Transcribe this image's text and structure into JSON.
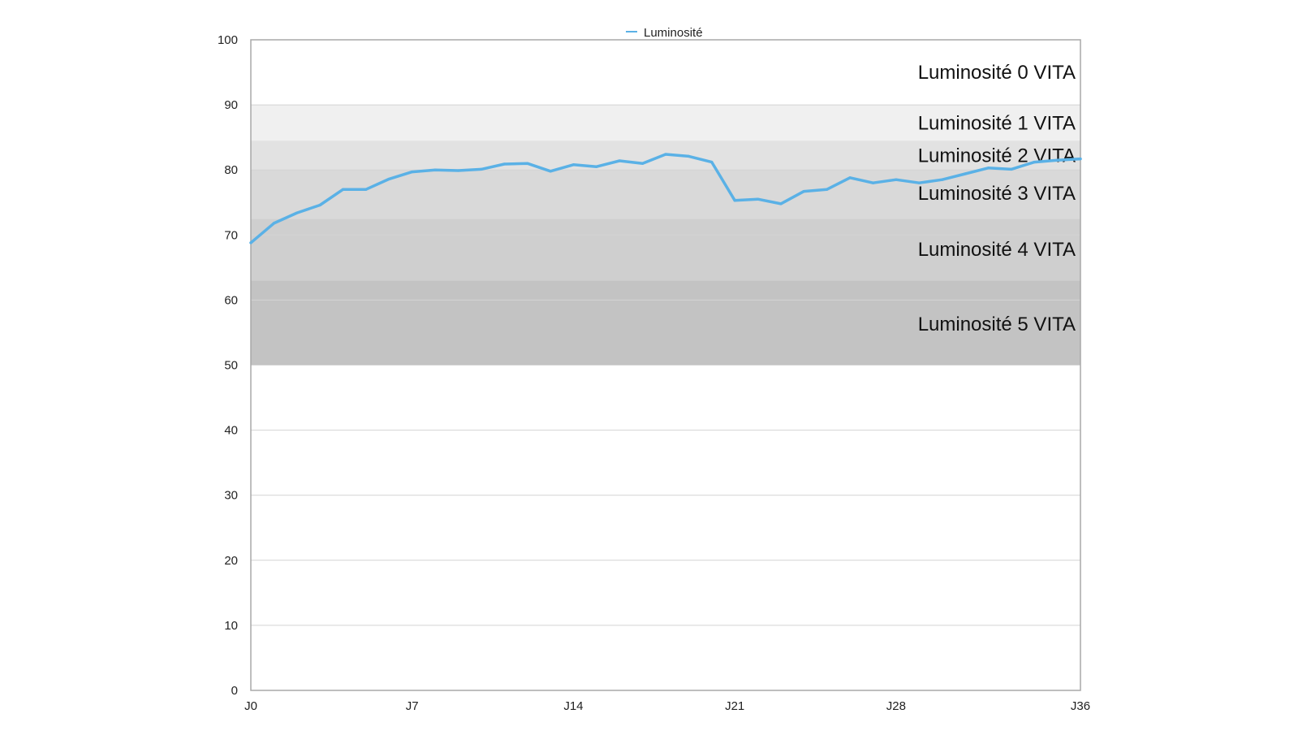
{
  "chart_data": {
    "type": "line",
    "legend": {
      "label": "Luminosité",
      "position": "top-center"
    },
    "ylim": [
      0,
      100
    ],
    "yticks": [
      "0",
      "10",
      "20",
      "30",
      "40",
      "50",
      "60",
      "70",
      "80",
      "90",
      "100"
    ],
    "xlim": [
      0,
      36
    ],
    "xticks": [
      {
        "x": 0,
        "label": "J0"
      },
      {
        "x": 7,
        "label": "J7"
      },
      {
        "x": 14,
        "label": "J14"
      },
      {
        "x": 21,
        "label": "J21"
      },
      {
        "x": 28,
        "label": "J28"
      },
      {
        "x": 36,
        "label": "J36"
      }
    ],
    "grid": true,
    "line_color": "#5ab1e6",
    "bands": [
      {
        "label": "Luminosité 0 VITA",
        "from": 90,
        "to": 100,
        "color": "#ffffff"
      },
      {
        "label": "Luminosité 1 VITA",
        "from": 84.5,
        "to": 90,
        "color": "#f0f0f0"
      },
      {
        "label": "Luminosité 2 VITA",
        "from": 80,
        "to": 84.5,
        "color": "#e2e2e2"
      },
      {
        "label": "Luminosité 3 VITA",
        "from": 72.5,
        "to": 80,
        "color": "#d9d9d9"
      },
      {
        "label": "Luminosité 4 VITA",
        "from": 63,
        "to": 72.5,
        "color": "#cfcfcf"
      },
      {
        "label": "Luminosité 5 VITA",
        "from": 50,
        "to": 63,
        "color": "#c3c3c3"
      }
    ],
    "band_label_values": [
      95,
      87.2,
      82.2,
      76.4,
      67.8,
      56.3
    ],
    "series": [
      {
        "name": "Luminosité",
        "x": [
          0,
          1,
          2,
          3,
          4,
          5,
          6,
          7,
          8,
          9,
          10,
          11,
          12,
          13,
          14,
          15,
          16,
          17,
          18,
          19,
          20,
          21,
          22,
          23,
          24,
          25,
          26,
          27,
          28,
          29,
          30,
          31,
          32,
          33,
          34,
          35,
          36
        ],
        "values": [
          68.8,
          71.8,
          73.4,
          74.6,
          77.0,
          77.0,
          78.6,
          79.7,
          80.0,
          79.9,
          80.1,
          80.9,
          81.0,
          79.8,
          80.8,
          80.5,
          81.4,
          81.0,
          82.4,
          82.1,
          81.2,
          75.3,
          75.5,
          74.8,
          76.7,
          77.0,
          78.8,
          78.0,
          78.5,
          78.0,
          78.5,
          79.4,
          80.3,
          80.1,
          81.2,
          81.5,
          81.7
        ]
      }
    ]
  }
}
